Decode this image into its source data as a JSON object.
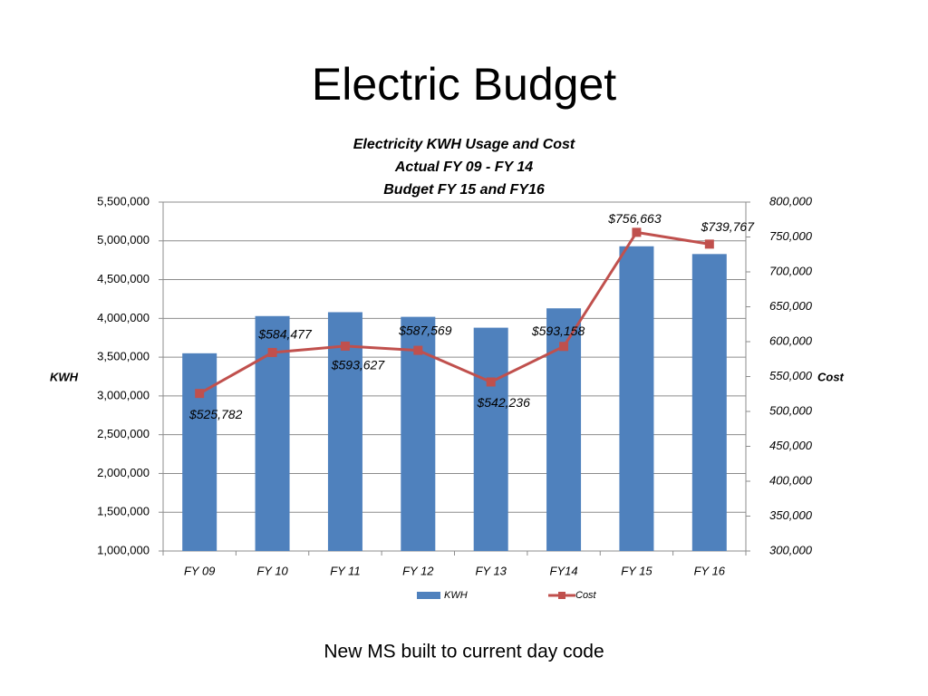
{
  "slide_title": "Electric Budget",
  "footer": "New MS built to current day code",
  "chart_data": {
    "type": "combo",
    "title": [
      "Electricity KWH  Usage and Cost",
      "Actual FY 09 -  FY 14",
      "Budget FY 15 and  FY16"
    ],
    "categories": [
      "FY 09",
      "FY 10",
      "FY 11",
      "FY 12",
      "FY 13",
      "FY14",
      "FY 15",
      "FY 16"
    ],
    "y_label": "KWH",
    "y2_label": "Cost",
    "ylim": [
      1000000,
      5500000
    ],
    "yticks": [
      {
        "value": 1000000,
        "label": "1,000,000"
      },
      {
        "value": 1500000,
        "label": "1,500,000"
      },
      {
        "value": 2000000,
        "label": "2,000,000"
      },
      {
        "value": 2500000,
        "label": "2,500,000"
      },
      {
        "value": 3000000,
        "label": "3,000,000"
      },
      {
        "value": 3500000,
        "label": "3,500,000"
      },
      {
        "value": 4000000,
        "label": "4,000,000"
      },
      {
        "value": 4500000,
        "label": "4,500,000"
      },
      {
        "value": 5000000,
        "label": "5,000,000"
      },
      {
        "value": 5500000,
        "label": "5,500,000"
      }
    ],
    "y2lim": [
      300000,
      800000
    ],
    "y2ticks": [
      {
        "value": 300000,
        "label": "300,000"
      },
      {
        "value": 350000,
        "label": "350,000"
      },
      {
        "value": 400000,
        "label": "400,000"
      },
      {
        "value": 450000,
        "label": "450,000"
      },
      {
        "value": 500000,
        "label": "500,000"
      },
      {
        "value": 550000,
        "label": "550,000"
      },
      {
        "value": 600000,
        "label": "600,000"
      },
      {
        "value": 650000,
        "label": "650,000"
      },
      {
        "value": 700000,
        "label": "700,000"
      },
      {
        "value": 750000,
        "label": "750,000"
      },
      {
        "value": 800000,
        "label": "800,000"
      }
    ],
    "grid": true,
    "legend": "bottom",
    "series": [
      {
        "name": "KWH",
        "type": "bar",
        "color": "#4f81bd",
        "values": [
          3550000,
          4030000,
          4080000,
          4020000,
          3880000,
          4130000,
          4930000,
          4830000
        ]
      },
      {
        "name": "Cost",
        "type": "line",
        "axis": "y2",
        "color": "#c0504d",
        "values": [
          525782,
          584477,
          593627,
          587569,
          542236,
          593158,
          756663,
          739767
        ],
        "value_labels": [
          "$525,782",
          "$584,477",
          "$593,627",
          "$587,569",
          "$542,236",
          "$593,158",
          "$756,663",
          "$739,767"
        ]
      }
    ]
  }
}
